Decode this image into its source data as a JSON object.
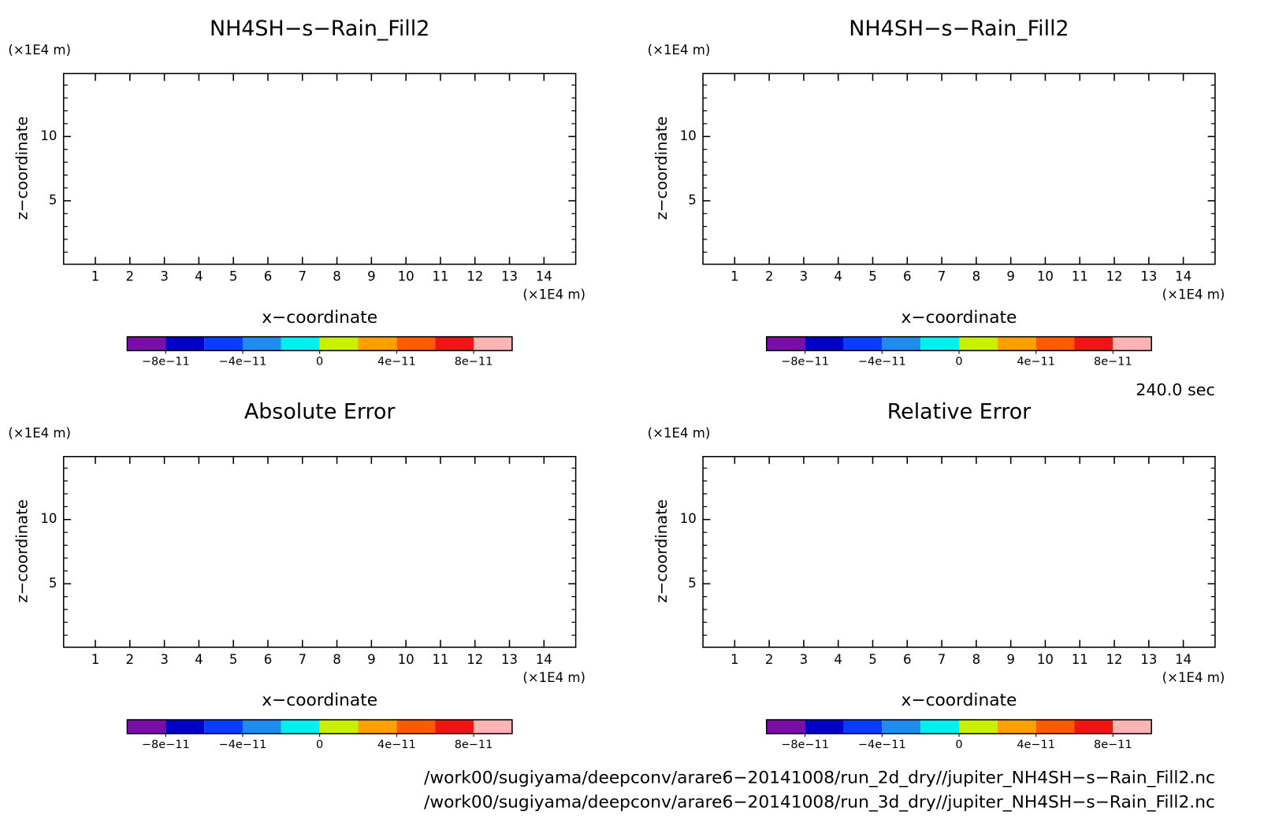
{
  "chart_data": [
    {
      "type": "contour",
      "title": "NH4SH−s−Rain_Fill2",
      "xlabel": "x−coordinate",
      "ylabel": "z−coordinate",
      "xunit": "(×1E4 m)",
      "yunit": "(×1E4 m)",
      "xlim": [
        0.08,
        14.92
      ],
      "ylim": [
        0.06,
        14.9
      ],
      "xticks": [
        1,
        2,
        3,
        4,
        5,
        6,
        7,
        8,
        9,
        10,
        11,
        12,
        13,
        14
      ],
      "yticks": [
        5,
        10
      ],
      "yminorticks": [
        1,
        2,
        3,
        4,
        6,
        7,
        8,
        9,
        11,
        12,
        13,
        14
      ],
      "colorbar": {
        "colors": [
          "#7b0ea8",
          "#0000c8",
          "#0a3cff",
          "#1e8cf0",
          "#00f0f0",
          "#c8f000",
          "#ffa000",
          "#ff5a00",
          "#f01414",
          "#ffb4b4"
        ],
        "lim": [
          -1e-10,
          1e-10
        ],
        "ticks": [
          {
            "value": -8e-11,
            "label": "−8e−11"
          },
          {
            "value": -4e-11,
            "label": "−4e−11"
          },
          0,
          {
            "value": 4e-11,
            "label": "4e−11"
          },
          {
            "value": 8e-11,
            "label": "8e−11"
          }
        ]
      }
    },
    {
      "type": "contour",
      "title": "NH4SH−s−Rain_Fill2",
      "xlabel": "x−coordinate",
      "ylabel": "z−coordinate",
      "xunit": "(×1E4 m)",
      "yunit": "(×1E4 m)",
      "xlim": [
        0.08,
        14.92
      ],
      "ylim": [
        0.06,
        14.9
      ],
      "xticks": [
        1,
        2,
        3,
        4,
        5,
        6,
        7,
        8,
        9,
        10,
        11,
        12,
        13,
        14
      ],
      "yticks": [
        5,
        10
      ],
      "yminorticks": [
        1,
        2,
        3,
        4,
        6,
        7,
        8,
        9,
        11,
        12,
        13,
        14
      ],
      "colorbar": {
        "colors": [
          "#7b0ea8",
          "#0000c8",
          "#0a3cff",
          "#1e8cf0",
          "#00f0f0",
          "#c8f000",
          "#ffa000",
          "#ff5a00",
          "#f01414",
          "#ffb4b4"
        ],
        "lim": [
          -1e-10,
          1e-10
        ],
        "ticks": [
          {
            "value": -8e-11,
            "label": "−8e−11"
          },
          {
            "value": -4e-11,
            "label": "−4e−11"
          },
          0,
          {
            "value": 4e-11,
            "label": "4e−11"
          },
          {
            "value": 8e-11,
            "label": "8e−11"
          }
        ]
      }
    },
    {
      "type": "contour",
      "title": "Absolute Error",
      "xlabel": "x−coordinate",
      "ylabel": "z−coordinate",
      "xunit": "(×1E4 m)",
      "yunit": "(×1E4 m)",
      "xlim": [
        0.08,
        14.92
      ],
      "ylim": [
        0.06,
        14.9
      ],
      "xticks": [
        1,
        2,
        3,
        4,
        5,
        6,
        7,
        8,
        9,
        10,
        11,
        12,
        13,
        14
      ],
      "yticks": [
        5,
        10
      ],
      "yminorticks": [
        1,
        2,
        3,
        4,
        6,
        7,
        8,
        9,
        11,
        12,
        13,
        14
      ],
      "colorbar": {
        "colors": [
          "#7b0ea8",
          "#0000c8",
          "#0a3cff",
          "#1e8cf0",
          "#00f0f0",
          "#c8f000",
          "#ffa000",
          "#ff5a00",
          "#f01414",
          "#ffb4b4"
        ],
        "lim": [
          -1e-10,
          1e-10
        ],
        "ticks": [
          {
            "value": -8e-11,
            "label": "−8e−11"
          },
          {
            "value": -4e-11,
            "label": "−4e−11"
          },
          0,
          {
            "value": 4e-11,
            "label": "4e−11"
          },
          {
            "value": 8e-11,
            "label": "8e−11"
          }
        ]
      }
    },
    {
      "type": "contour",
      "title": "Relative Error",
      "xlabel": "x−coordinate",
      "ylabel": "z−coordinate",
      "xunit": "(×1E4 m)",
      "yunit": "(×1E4 m)",
      "xlim": [
        0.08,
        14.92
      ],
      "ylim": [
        0.06,
        14.9
      ],
      "xticks": [
        1,
        2,
        3,
        4,
        5,
        6,
        7,
        8,
        9,
        10,
        11,
        12,
        13,
        14
      ],
      "yticks": [
        5,
        10
      ],
      "yminorticks": [
        1,
        2,
        3,
        4,
        6,
        7,
        8,
        9,
        11,
        12,
        13,
        14
      ],
      "colorbar": {
        "colors": [
          "#7b0ea8",
          "#0000c8",
          "#0a3cff",
          "#1e8cf0",
          "#00f0f0",
          "#c8f000",
          "#ffa000",
          "#ff5a00",
          "#f01414",
          "#ffb4b4"
        ],
        "lim": [
          -1e-10,
          1e-10
        ],
        "ticks": [
          {
            "value": -8e-11,
            "label": "−8e−11"
          },
          {
            "value": -4e-11,
            "label": "−4e−11"
          },
          0,
          {
            "value": 4e-11,
            "label": "4e−11"
          },
          {
            "value": 8e-11,
            "label": "8e−11"
          }
        ]
      }
    }
  ],
  "time": "240.0 sec",
  "files": [
    "/work00/sugiyama/deepconv/arare6−20141008/run_2d_dry//jupiter_NH4SH−s−Rain_Fill2.nc",
    "/work00/sugiyama/deepconv/arare6−20141008/run_3d_dry//jupiter_NH4SH−s−Rain_Fill2.nc"
  ]
}
